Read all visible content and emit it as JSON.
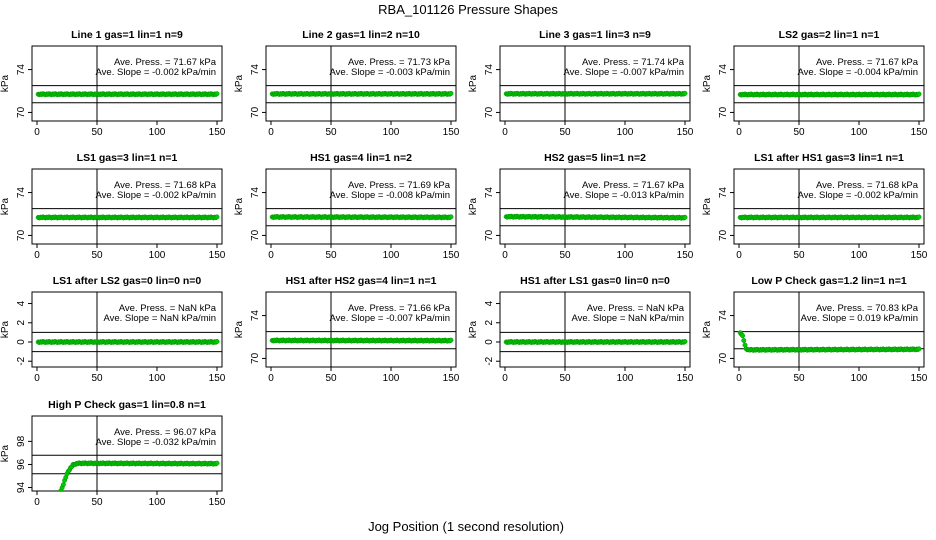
{
  "figure": {
    "title": "RBA_101126  Pressure Shapes",
    "xlabel": "Jog Position (1 second resolution)",
    "ylabel": "kPa",
    "point_color": "#00cc00",
    "point_edge_color": "#008800",
    "axis_color": "#000000"
  },
  "chart_data": [
    {
      "type": "scatter",
      "title": "Line 1 gas=1 lin=1 n=9",
      "ave_label": "Ave. Press. = 71.67 kPa",
      "slope_label": "Ave. Slope = -0.002 kPa/min",
      "xlim": [
        0,
        150
      ],
      "xticks": [
        0,
        50,
        100,
        150
      ],
      "ylim": [
        69.2,
        76.2
      ],
      "yticks": [
        70,
        74
      ],
      "hlines": [
        70.9,
        72.5
      ],
      "vline": 50,
      "series": [
        {
          "x": [
            1,
            150
          ],
          "y": [
            71.7,
            71.7
          ]
        }
      ]
    },
    {
      "type": "scatter",
      "title": "Line 2 gas=1 lin=2 n=10",
      "ave_label": "Ave. Press. = 71.73 kPa",
      "slope_label": "Ave. Slope = -0.003 kPa/min",
      "xlim": [
        0,
        150
      ],
      "xticks": [
        0,
        50,
        100,
        150
      ],
      "ylim": [
        69.2,
        76.2
      ],
      "yticks": [
        70,
        74
      ],
      "hlines": [
        70.9,
        72.5
      ],
      "vline": 50,
      "series": [
        {
          "x": [
            1,
            150
          ],
          "y": [
            71.73,
            71.73
          ]
        }
      ]
    },
    {
      "type": "scatter",
      "title": "Line 3 gas=1 lin=3 n=9",
      "ave_label": "Ave. Press. = 71.74 kPa",
      "slope_label": "Ave. Slope = -0.007 kPa/min",
      "xlim": [
        0,
        150
      ],
      "xticks": [
        0,
        50,
        100,
        150
      ],
      "ylim": [
        69.2,
        76.2
      ],
      "yticks": [
        70,
        74
      ],
      "hlines": [
        70.9,
        72.5
      ],
      "vline": 50,
      "series": [
        {
          "x": [
            1,
            150
          ],
          "y": [
            71.74,
            71.74
          ]
        }
      ]
    },
    {
      "type": "scatter",
      "title": "LS2 gas=2 lin=1 n=1",
      "ave_label": "Ave. Press. = 71.67 kPa",
      "slope_label": "Ave. Slope = -0.004 kPa/min",
      "xlim": [
        0,
        150
      ],
      "xticks": [
        0,
        50,
        100,
        150
      ],
      "ylim": [
        69.2,
        76.2
      ],
      "yticks": [
        70,
        74
      ],
      "hlines": [
        70.9,
        72.5
      ],
      "vline": 50,
      "series": [
        {
          "x": [
            1,
            150
          ],
          "y": [
            71.67,
            71.67
          ]
        }
      ]
    },
    {
      "type": "scatter",
      "title": "LS1 gas=3 lin=1 n=1",
      "ave_label": "Ave. Press. = 71.68 kPa",
      "slope_label": "Ave. Slope = -0.002 kPa/min",
      "xlim": [
        0,
        150
      ],
      "xticks": [
        0,
        50,
        100,
        150
      ],
      "ylim": [
        69.2,
        76.2
      ],
      "yticks": [
        70,
        74
      ],
      "hlines": [
        70.9,
        72.5
      ],
      "vline": 50,
      "series": [
        {
          "x": [
            1,
            150
          ],
          "y": [
            71.68,
            71.68
          ]
        }
      ]
    },
    {
      "type": "scatter",
      "title": "HS1 gas=4 lin=1 n=2",
      "ave_label": "Ave. Press. = 71.69 kPa",
      "slope_label": "Ave. Slope = -0.008 kPa/min",
      "xlim": [
        0,
        150
      ],
      "xticks": [
        0,
        50,
        100,
        150
      ],
      "ylim": [
        69.2,
        76.2
      ],
      "yticks": [
        70,
        74
      ],
      "hlines": [
        70.9,
        72.5
      ],
      "vline": 50,
      "series": [
        {
          "x": [
            1,
            150
          ],
          "y": [
            71.72,
            71.69
          ]
        }
      ]
    },
    {
      "type": "scatter",
      "title": "HS2 gas=5 lin=1 n=2",
      "ave_label": "Ave. Press. = 71.67 kPa",
      "slope_label": "Ave. Slope = -0.013 kPa/min",
      "xlim": [
        0,
        150
      ],
      "xticks": [
        0,
        50,
        100,
        150
      ],
      "ylim": [
        69.2,
        76.2
      ],
      "yticks": [
        70,
        74
      ],
      "hlines": [
        70.9,
        72.5
      ],
      "vline": 50,
      "series": [
        {
          "x": [
            1,
            150
          ],
          "y": [
            71.75,
            71.65
          ]
        }
      ]
    },
    {
      "type": "scatter",
      "title": "LS1 after HS1 gas=3 lin=1 n=1",
      "ave_label": "Ave. Press. = 71.68 kPa",
      "slope_label": "Ave. Slope = -0.002 kPa/min",
      "xlim": [
        0,
        150
      ],
      "xticks": [
        0,
        50,
        100,
        150
      ],
      "ylim": [
        69.2,
        76.2
      ],
      "yticks": [
        70,
        74
      ],
      "hlines": [
        70.9,
        72.5
      ],
      "vline": 50,
      "series": [
        {
          "x": [
            1,
            150
          ],
          "y": [
            71.68,
            71.68
          ]
        }
      ]
    },
    {
      "type": "scatter",
      "title": "LS1 after LS2 gas=0 lin=0 n=0",
      "ave_label": "Ave. Press. = NaN kPa",
      "slope_label": "Ave. Slope = NaN kPa/min",
      "xlim": [
        0,
        150
      ],
      "xticks": [
        0,
        50,
        100,
        150
      ],
      "ylim": [
        -2.6,
        5.2
      ],
      "yticks": [
        -2,
        0,
        2,
        4
      ],
      "hlines": [
        -1,
        1
      ],
      "vline": 50,
      "series": [
        {
          "x": [
            1,
            150
          ],
          "y": [
            0,
            0
          ]
        }
      ]
    },
    {
      "type": "scatter",
      "title": "HS1 after HS2 gas=4 lin=1 n=1",
      "ave_label": "Ave. Press. = 71.66 kPa",
      "slope_label": "Ave. Slope = -0.007 kPa/min",
      "xlim": [
        0,
        150
      ],
      "xticks": [
        0,
        50,
        100,
        150
      ],
      "ylim": [
        69.2,
        76.2
      ],
      "yticks": [
        70,
        74
      ],
      "hlines": [
        70.9,
        72.5
      ],
      "vline": 50,
      "series": [
        {
          "x": [
            1,
            150
          ],
          "y": [
            71.68,
            71.66
          ]
        }
      ]
    },
    {
      "type": "scatter",
      "title": "HS1 after LS1 gas=0 lin=0 n=0",
      "ave_label": "Ave. Press. = NaN kPa",
      "slope_label": "Ave. Slope = NaN kPa/min",
      "xlim": [
        0,
        150
      ],
      "xticks": [
        0,
        50,
        100,
        150
      ],
      "ylim": [
        -2.6,
        5.2
      ],
      "yticks": [
        -2,
        0,
        2,
        4
      ],
      "hlines": [
        -1,
        1
      ],
      "vline": 50,
      "series": [
        {
          "x": [
            1,
            150
          ],
          "y": [
            0,
            0
          ]
        }
      ]
    },
    {
      "type": "scatter",
      "title": "Low P Check gas=1.2 lin=1 n=1",
      "ave_label": "Ave. Press. = 70.83 kPa",
      "slope_label": "Ave. Slope = 0.019 kPa/min",
      "xlim": [
        0,
        150
      ],
      "xticks": [
        0,
        50,
        100,
        150
      ],
      "ylim": [
        69.2,
        76.2
      ],
      "yticks": [
        70,
        74
      ],
      "hlines": [
        70.9,
        72.5
      ],
      "vline": 50,
      "series": [
        {
          "x": [
            1,
            2,
            3,
            4,
            5,
            6,
            8,
            150
          ],
          "y": [
            72.4,
            72.3,
            72.1,
            71.7,
            71.2,
            70.9,
            70.8,
            70.85
          ]
        }
      ]
    },
    {
      "type": "scatter",
      "title": "High P Check gas=1 lin=0.8 n=1",
      "ave_label": "Ave. Press. = 96.07 kPa",
      "slope_label": "Ave. Slope = -0.032 kPa/min",
      "xlim": [
        0,
        150
      ],
      "xticks": [
        0,
        50,
        100,
        150
      ],
      "ylim": [
        93.7,
        100.2
      ],
      "yticks": [
        94,
        96,
        98
      ],
      "hlines": [
        95.2,
        96.8
      ],
      "vline": 50,
      "series": [
        {
          "x": [
            20,
            22,
            24,
            26,
            28,
            30,
            32,
            35,
            40,
            150
          ],
          "y": [
            93.7,
            94.3,
            94.9,
            95.4,
            95.7,
            95.95,
            96.05,
            96.1,
            96.1,
            96.07
          ]
        }
      ]
    }
  ]
}
